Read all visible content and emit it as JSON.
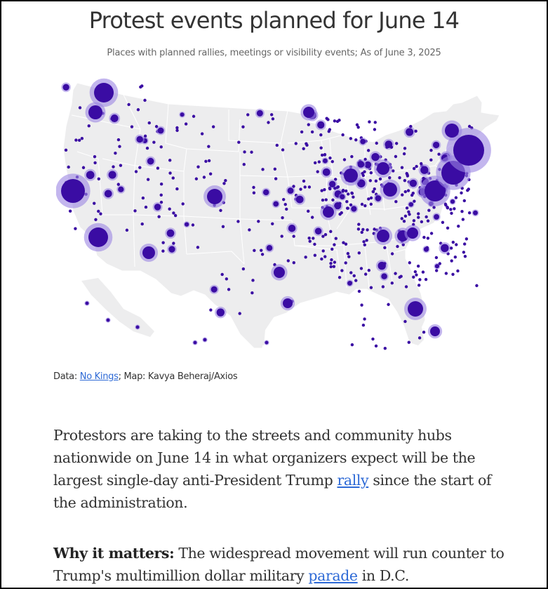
{
  "header": {
    "title": "Protest events planned for June 14",
    "subtitle": "Places with planned rallies, meetings or visibility events; As of June 3, 2025"
  },
  "map": {
    "region": "Contiguous United States",
    "colors": {
      "land": "#ededee",
      "border": "#ffffff",
      "dot": "#3a0ca3",
      "halo": "#9b86e3"
    }
  },
  "credit": {
    "prefix": "Data: ",
    "source_link": "No Kings",
    "suffix": "; Map: Kavya Beheraj/Axios"
  },
  "article": {
    "p1_before": "Protestors are taking to the streets and community hubs nationwide on June 14 in what organizers expect will be the largest single-day anti-President Trump ",
    "p1_link": "rally",
    "p1_after": " since the start of the administration.",
    "p2_lead": "Why it matters:",
    "p2_before": " The widespread movement will run counter to Trump's multimillion dollar military ",
    "p2_link": "parade",
    "p2_after": " in D.C."
  }
}
